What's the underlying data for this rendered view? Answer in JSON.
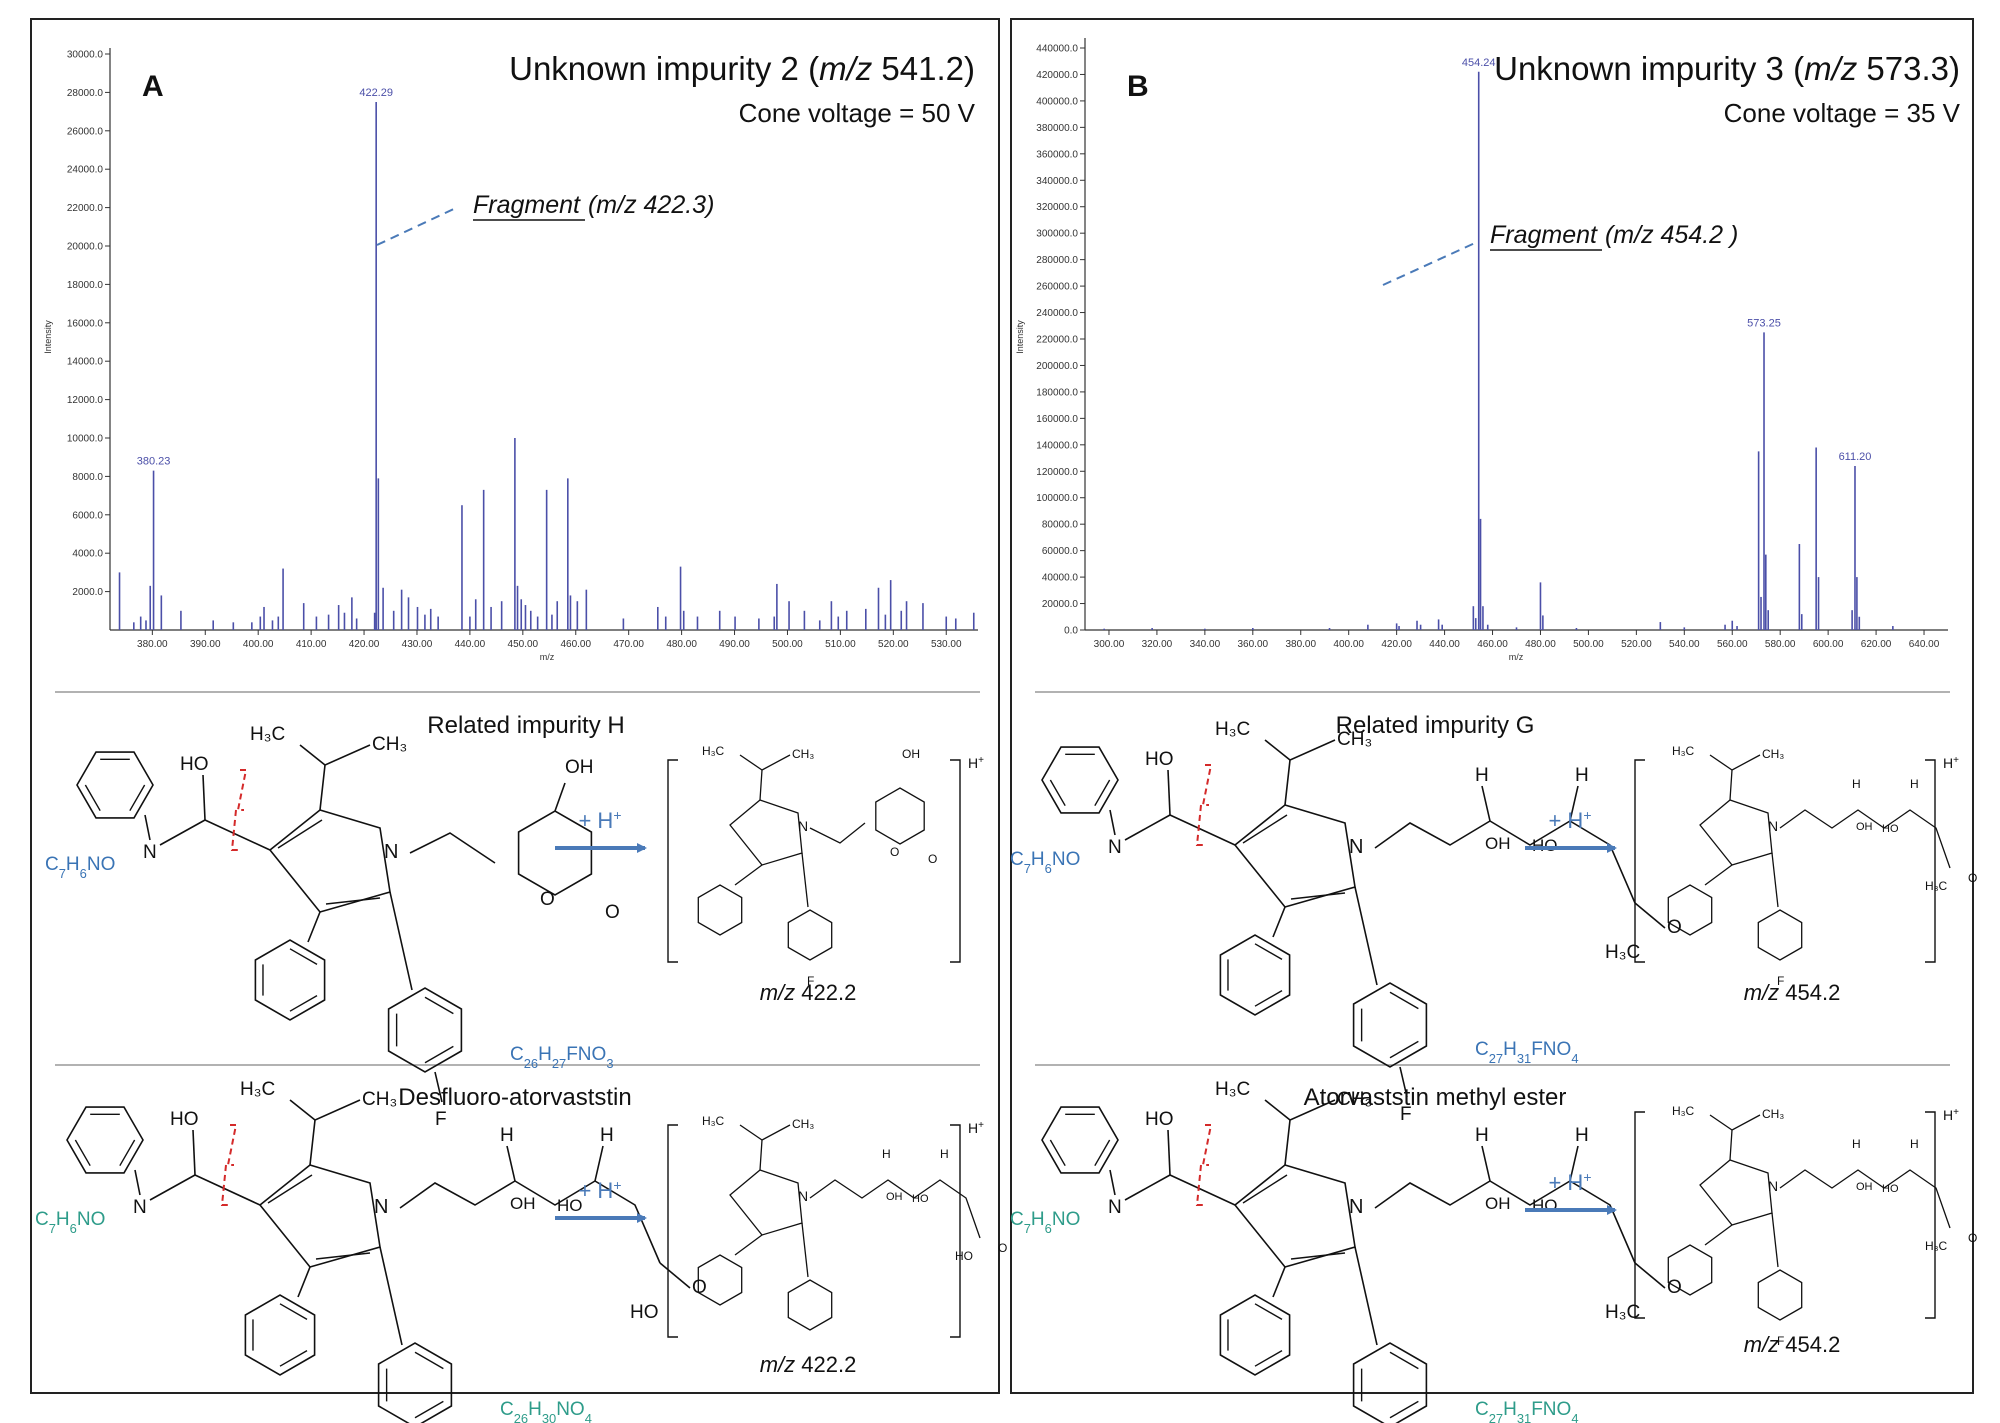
{
  "panels": {
    "A": {
      "letter": "A",
      "title_pre": "Unknown impurity 2 (",
      "title_mz": "m/z",
      "title_post": " 541.2)",
      "cone": "Cone voltage = 50 V",
      "fragment_label": "Fragment",
      "fragment_mz": "(m/z 422.3)",
      "top_section": {
        "title": "Related impurity H",
        "fragment_formula": "C7H6NO",
        "product_formula": "C26H27FNO3",
        "charge": "H+",
        "reagent": "+ H+",
        "mz_label": "m/z",
        "mz_value": "422.2"
      },
      "bottom_section": {
        "title": "Desfluoro-atorvaststin",
        "fragment_formula": "C7H6NO",
        "product_formula": "C26H30NO4",
        "charge": "H+",
        "reagent": "+ H+",
        "mz_label": "m/z",
        "mz_value": "422.2"
      }
    },
    "B": {
      "letter": "B",
      "title_pre": "Unknown impurity 3 (",
      "title_mz": "m/z",
      "title_post": " 573.3)",
      "cone": "Cone voltage = 35 V",
      "fragment_label": "Fragment",
      "fragment_mz": "(m/z 454.2 )",
      "top_section": {
        "title": "Related impurity G",
        "fragment_formula": "C7H6NO",
        "product_formula": "C27H31FNO4",
        "charge": "H+",
        "reagent": "+ H+",
        "mz_label": "m/z",
        "mz_value": "454.2"
      },
      "bottom_section": {
        "title": "Atorvaststin methyl ester",
        "fragment_formula": "C7H6NO",
        "product_formula": "C27H31FNO4",
        "charge": "H+",
        "reagent": "+ H+",
        "mz_label": "m/z",
        "mz_value": "454.2"
      }
    }
  },
  "colors": {
    "spectrum": "#4b4fa8",
    "arrow": "#4a7ab8",
    "formula_blue": "#3a74b5",
    "formula_green": "#2e9c8a",
    "cleave": "#d42a2a",
    "frame": "#222222"
  },
  "chart_data": [
    {
      "type": "bar",
      "panel": "A",
      "xlabel": "m/z",
      "ylabel": "Intensity",
      "xlim": [
        372,
        536
      ],
      "ylim": [
        0,
        30000
      ],
      "xticks": [
        380,
        390,
        400,
        410,
        420,
        430,
        440,
        450,
        460,
        470,
        480,
        490,
        500,
        510,
        520,
        530
      ],
      "xtick_labels": [
        "380.00",
        "390.00",
        "400.00",
        "410.00",
        "420.00",
        "430.00",
        "440.00",
        "450.00",
        "460.00",
        "470.00",
        "480.00",
        "490.00",
        "500.00",
        "510.00",
        "520.00",
        "530.00"
      ],
      "yticks": [
        2000,
        4000,
        6000,
        8000,
        10000,
        12000,
        14000,
        16000,
        18000,
        20000,
        22000,
        24000,
        26000,
        28000,
        30000
      ],
      "ytick_labels": [
        "2000.0",
        "4000.0",
        "6000.0",
        "8000.0",
        "10000.0",
        "12000.0",
        "14000.0",
        "16000.0",
        "18000.0",
        "20000.0",
        "22000.0",
        "24000.0",
        "26000.0",
        "28000.0",
        "30000.0"
      ],
      "peak_labels": [
        {
          "x": 380.23,
          "y": 8300,
          "text": "380.23"
        },
        {
          "x": 422.29,
          "y": 27500,
          "text": "422.29"
        }
      ],
      "peaks": [
        {
          "x": 373.8,
          "y": 3000
        },
        {
          "x": 376.5,
          "y": 400
        },
        {
          "x": 377.8,
          "y": 700
        },
        {
          "x": 378.8,
          "y": 500
        },
        {
          "x": 379.6,
          "y": 2300
        },
        {
          "x": 380.23,
          "y": 8300
        },
        {
          "x": 381.7,
          "y": 1800
        },
        {
          "x": 385.4,
          "y": 1000
        },
        {
          "x": 391.5,
          "y": 500
        },
        {
          "x": 395.3,
          "y": 400
        },
        {
          "x": 398.8,
          "y": 400
        },
        {
          "x": 400.4,
          "y": 700
        },
        {
          "x": 401.1,
          "y": 1200
        },
        {
          "x": 402.7,
          "y": 500
        },
        {
          "x": 403.8,
          "y": 700
        },
        {
          "x": 404.7,
          "y": 3200
        },
        {
          "x": 408.6,
          "y": 1400
        },
        {
          "x": 411.0,
          "y": 700
        },
        {
          "x": 413.3,
          "y": 800
        },
        {
          "x": 415.2,
          "y": 1300
        },
        {
          "x": 416.3,
          "y": 900
        },
        {
          "x": 417.7,
          "y": 1700
        },
        {
          "x": 418.6,
          "y": 600
        },
        {
          "x": 422.0,
          "y": 900
        },
        {
          "x": 422.29,
          "y": 27500
        },
        {
          "x": 422.7,
          "y": 7900
        },
        {
          "x": 423.6,
          "y": 2200
        },
        {
          "x": 425.6,
          "y": 1000
        },
        {
          "x": 427.1,
          "y": 2100
        },
        {
          "x": 428.4,
          "y": 1700
        },
        {
          "x": 430.1,
          "y": 1200
        },
        {
          "x": 431.5,
          "y": 800
        },
        {
          "x": 432.6,
          "y": 1100
        },
        {
          "x": 434.0,
          "y": 700
        },
        {
          "x": 438.5,
          "y": 6500
        },
        {
          "x": 440.0,
          "y": 700
        },
        {
          "x": 441.1,
          "y": 1600
        },
        {
          "x": 442.6,
          "y": 7300
        },
        {
          "x": 444.0,
          "y": 1200
        },
        {
          "x": 446.0,
          "y": 1500
        },
        {
          "x": 448.5,
          "y": 10000
        },
        {
          "x": 449.0,
          "y": 2300
        },
        {
          "x": 449.7,
          "y": 1600
        },
        {
          "x": 450.5,
          "y": 1300
        },
        {
          "x": 451.5,
          "y": 1000
        },
        {
          "x": 452.8,
          "y": 700
        },
        {
          "x": 454.5,
          "y": 7300
        },
        {
          "x": 455.5,
          "y": 800
        },
        {
          "x": 456.5,
          "y": 1500
        },
        {
          "x": 458.5,
          "y": 7900
        },
        {
          "x": 459.0,
          "y": 1800
        },
        {
          "x": 460.3,
          "y": 1500
        },
        {
          "x": 462.0,
          "y": 2100
        },
        {
          "x": 469.0,
          "y": 600
        },
        {
          "x": 475.5,
          "y": 1200
        },
        {
          "x": 477.0,
          "y": 700
        },
        {
          "x": 479.8,
          "y": 3300
        },
        {
          "x": 480.4,
          "y": 1000
        },
        {
          "x": 483.0,
          "y": 700
        },
        {
          "x": 487.2,
          "y": 1000
        },
        {
          "x": 490.1,
          "y": 700
        },
        {
          "x": 494.6,
          "y": 600
        },
        {
          "x": 497.5,
          "y": 700
        },
        {
          "x": 498.0,
          "y": 2400
        },
        {
          "x": 500.3,
          "y": 1500
        },
        {
          "x": 503.2,
          "y": 1000
        },
        {
          "x": 506.1,
          "y": 500
        },
        {
          "x": 508.3,
          "y": 1500
        },
        {
          "x": 509.6,
          "y": 700
        },
        {
          "x": 511.2,
          "y": 1000
        },
        {
          "x": 514.8,
          "y": 1100
        },
        {
          "x": 517.2,
          "y": 2200
        },
        {
          "x": 518.5,
          "y": 800
        },
        {
          "x": 519.5,
          "y": 2600
        },
        {
          "x": 521.5,
          "y": 1000
        },
        {
          "x": 522.5,
          "y": 1500
        },
        {
          "x": 525.6,
          "y": 1400
        },
        {
          "x": 530.0,
          "y": 700
        },
        {
          "x": 531.8,
          "y": 600
        },
        {
          "x": 535.2,
          "y": 900
        }
      ]
    },
    {
      "type": "bar",
      "panel": "B",
      "xlabel": "m/z",
      "ylabel": "Intensity",
      "xlim": [
        290,
        650
      ],
      "ylim": [
        0,
        440000
      ],
      "xticks": [
        300,
        320,
        340,
        360,
        380,
        400,
        420,
        440,
        460,
        480,
        500,
        520,
        540,
        560,
        580,
        600,
        620,
        640
      ],
      "xtick_labels": [
        "300.00",
        "320.00",
        "340.00",
        "360.00",
        "380.00",
        "400.00",
        "420.00",
        "440.00",
        "460.00",
        "480.00",
        "500.00",
        "520.00",
        "540.00",
        "560.00",
        "580.00",
        "600.00",
        "620.00",
        "640.00"
      ],
      "yticks": [
        0,
        20000,
        40000,
        60000,
        80000,
        100000,
        120000,
        140000,
        160000,
        180000,
        200000,
        220000,
        240000,
        260000,
        280000,
        300000,
        320000,
        340000,
        360000,
        380000,
        400000,
        420000,
        440000
      ],
      "ytick_labels": [
        "0.0",
        "20000.0",
        "40000.0",
        "60000.0",
        "80000.0",
        "100000.0",
        "120000.0",
        "140000.0",
        "160000.0",
        "180000.0",
        "200000.0",
        "220000.0",
        "240000.0",
        "260000.0",
        "280000.0",
        "300000.0",
        "320000.0",
        "340000.0",
        "360000.0",
        "380000.0",
        "400000.0",
        "420000.0",
        "440000.0"
      ],
      "peak_labels": [
        {
          "x": 454.24,
          "y": 422000,
          "text": "454.24"
        },
        {
          "x": 573.25,
          "y": 225000,
          "text": "573.25"
        },
        {
          "x": 611.2,
          "y": 124000,
          "text": "611.20"
        }
      ],
      "peaks": [
        {
          "x": 298.0,
          "y": 1000
        },
        {
          "x": 318.0,
          "y": 1500
        },
        {
          "x": 340.0,
          "y": 1000
        },
        {
          "x": 360.0,
          "y": 1500
        },
        {
          "x": 392.0,
          "y": 1500
        },
        {
          "x": 408.0,
          "y": 4000
        },
        {
          "x": 420.0,
          "y": 5000
        },
        {
          "x": 421.0,
          "y": 3000
        },
        {
          "x": 428.5,
          "y": 7000
        },
        {
          "x": 430.0,
          "y": 4000
        },
        {
          "x": 437.5,
          "y": 8000
        },
        {
          "x": 439.0,
          "y": 4000
        },
        {
          "x": 452.0,
          "y": 18000
        },
        {
          "x": 453.0,
          "y": 9000
        },
        {
          "x": 454.24,
          "y": 422000
        },
        {
          "x": 455.0,
          "y": 84000
        },
        {
          "x": 456.0,
          "y": 18000
        },
        {
          "x": 458.0,
          "y": 4000
        },
        {
          "x": 470.0,
          "y": 2000
        },
        {
          "x": 480.0,
          "y": 36000
        },
        {
          "x": 481.0,
          "y": 11000
        },
        {
          "x": 495.0,
          "y": 1500
        },
        {
          "x": 530.0,
          "y": 6000
        },
        {
          "x": 540.0,
          "y": 2000
        },
        {
          "x": 557.0,
          "y": 4000
        },
        {
          "x": 560.0,
          "y": 7000
        },
        {
          "x": 562.0,
          "y": 3000
        },
        {
          "x": 571.0,
          "y": 135000
        },
        {
          "x": 572.0,
          "y": 25000
        },
        {
          "x": 573.25,
          "y": 225000
        },
        {
          "x": 574.0,
          "y": 57000
        },
        {
          "x": 575.0,
          "y": 15000
        },
        {
          "x": 588.0,
          "y": 65000
        },
        {
          "x": 589.0,
          "y": 12000
        },
        {
          "x": 595.0,
          "y": 138000
        },
        {
          "x": 596.0,
          "y": 40000
        },
        {
          "x": 610.0,
          "y": 15000
        },
        {
          "x": 611.2,
          "y": 124000
        },
        {
          "x": 612.0,
          "y": 40000
        },
        {
          "x": 613.0,
          "y": 10000
        },
        {
          "x": 627.0,
          "y": 3000
        }
      ]
    }
  ]
}
